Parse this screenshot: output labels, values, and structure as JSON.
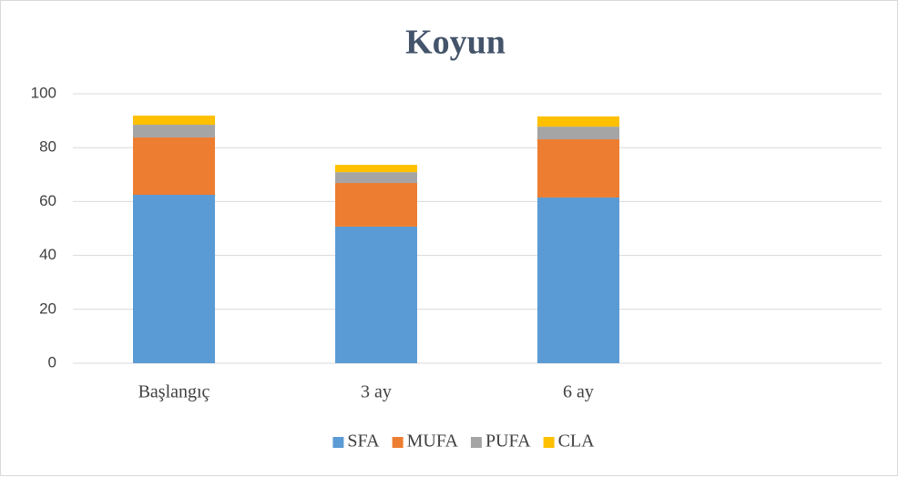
{
  "chart_data": {
    "type": "stacked_bar",
    "title": "Koyun",
    "categories": [
      "Başlangıç",
      "3 ay",
      "6 ay",
      null
    ],
    "series": [
      {
        "name": "SFA",
        "color": "#5b9bd5",
        "values": [
          62.5,
          50.7,
          61.5,
          null
        ]
      },
      {
        "name": "MUFA",
        "color": "#ed7d31",
        "values": [
          21.3,
          16.2,
          21.6,
          null
        ]
      },
      {
        "name": "PUFA",
        "color": "#a5a5a5",
        "values": [
          4.7,
          4.0,
          4.7,
          null
        ]
      },
      {
        "name": "CLA",
        "color": "#ffc000",
        "values": [
          3.4,
          2.7,
          3.8,
          null
        ]
      }
    ],
    "ylim": [
      0,
      100
    ],
    "yticks": [
      0,
      20,
      40,
      60,
      80,
      100
    ],
    "grid": true,
    "legend": "bottom"
  }
}
